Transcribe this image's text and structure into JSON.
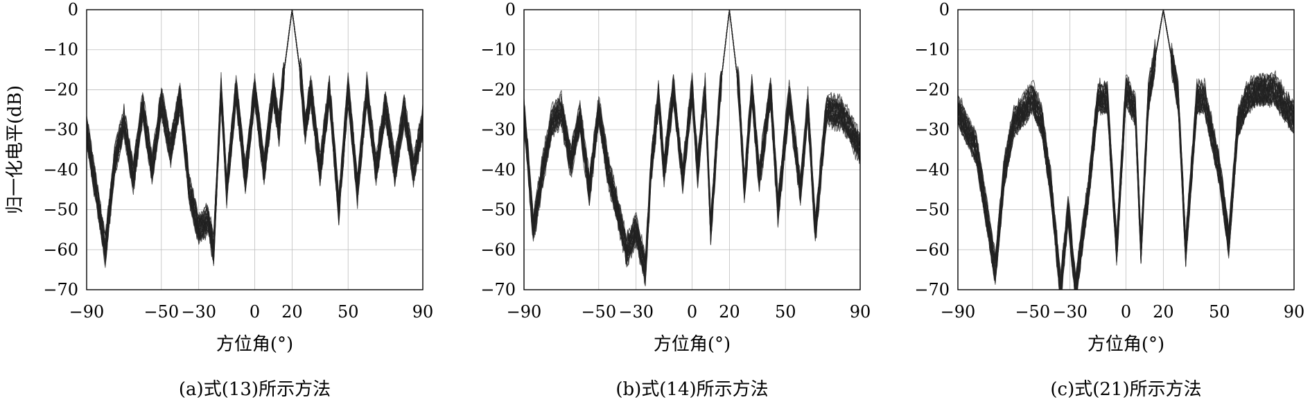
{
  "styles": {
    "line_color": "#222222",
    "grid_color": "#bdbdbd"
  },
  "chart_data": [
    {
      "type": "line",
      "caption": "(a)式(13)所示方法",
      "xlabel": "方位角(°)",
      "ylabel": "归一化电平(dB)",
      "xlim": [
        -90,
        90
      ],
      "ylim": [
        -70,
        0
      ],
      "xticks": [
        -90,
        -50,
        -30,
        0,
        20,
        50,
        90
      ],
      "yticks": [
        0,
        -10,
        -20,
        -30,
        -40,
        -50,
        -60,
        -70
      ],
      "grid": true,
      "mainlobe_center_deg": 20,
      "approx_envelope": [
        [
          -90,
          -30
        ],
        [
          -85,
          -45
        ],
        [
          -80,
          -60
        ],
        [
          -75,
          -38
        ],
        [
          -70,
          -28
        ],
        [
          -65,
          -42
        ],
        [
          -60,
          -24
        ],
        [
          -55,
          -40
        ],
        [
          -50,
          -23
        ],
        [
          -45,
          -35
        ],
        [
          -40,
          -22
        ],
        [
          -35,
          -45
        ],
        [
          -30,
          -55
        ],
        [
          -25,
          -52
        ],
        [
          -22,
          -60
        ],
        [
          -18,
          -20
        ],
        [
          -15,
          -45
        ],
        [
          -10,
          -20
        ],
        [
          -5,
          -42
        ],
        [
          0,
          -20
        ],
        [
          5,
          -40
        ],
        [
          10,
          -20
        ],
        [
          13,
          -30
        ],
        [
          15,
          -18
        ],
        [
          20,
          0
        ],
        [
          25,
          -18
        ],
        [
          27,
          -30
        ],
        [
          30,
          -20
        ],
        [
          35,
          -40
        ],
        [
          40,
          -20
        ],
        [
          45,
          -50
        ],
        [
          50,
          -20
        ],
        [
          55,
          -45
        ],
        [
          60,
          -20
        ],
        [
          65,
          -40
        ],
        [
          70,
          -24
        ],
        [
          75,
          -40
        ],
        [
          80,
          -25
        ],
        [
          85,
          -40
        ],
        [
          90,
          -28
        ]
      ],
      "series_count": 30
    },
    {
      "type": "line",
      "caption": "(b)式(14)所示方法",
      "xlabel": "方位角(°)",
      "ylabel": "",
      "xlim": [
        -90,
        90
      ],
      "ylim": [
        -70,
        0
      ],
      "xticks": [
        -90,
        -50,
        -30,
        0,
        20,
        50,
        90
      ],
      "yticks": [
        0,
        -10,
        -20,
        -30,
        -40,
        -50,
        -60,
        -70
      ],
      "grid": true,
      "mainlobe_center_deg": 20,
      "approx_envelope": [
        [
          -90,
          -25
        ],
        [
          -85,
          -55
        ],
        [
          -80,
          -40
        ],
        [
          -75,
          -28
        ],
        [
          -70,
          -25
        ],
        [
          -65,
          -38
        ],
        [
          -60,
          -27
        ],
        [
          -55,
          -45
        ],
        [
          -50,
          -25
        ],
        [
          -45,
          -40
        ],
        [
          -40,
          -50
        ],
        [
          -35,
          -60
        ],
        [
          -30,
          -55
        ],
        [
          -25,
          -65
        ],
        [
          -22,
          -40
        ],
        [
          -18,
          -22
        ],
        [
          -15,
          -40
        ],
        [
          -10,
          -20
        ],
        [
          -5,
          -42
        ],
        [
          0,
          -20
        ],
        [
          3,
          -40
        ],
        [
          7,
          -20
        ],
        [
          10,
          -55
        ],
        [
          15,
          -20
        ],
        [
          20,
          0
        ],
        [
          25,
          -20
        ],
        [
          28,
          -45
        ],
        [
          32,
          -20
        ],
        [
          36,
          -42
        ],
        [
          42,
          -20
        ],
        [
          46,
          -50
        ],
        [
          52,
          -22
        ],
        [
          58,
          -45
        ],
        [
          62,
          -24
        ],
        [
          66,
          -55
        ],
        [
          72,
          -25
        ],
        [
          80,
          -26
        ],
        [
          85,
          -30
        ],
        [
          90,
          -35
        ]
      ],
      "series_count": 30
    },
    {
      "type": "line",
      "caption": "(c)式(21)所示方法",
      "xlabel": "方位角(°)",
      "ylabel": "",
      "xlim": [
        -90,
        90
      ],
      "ylim": [
        -70,
        0
      ],
      "xticks": [
        -90,
        -50,
        -30,
        0,
        20,
        50,
        90
      ],
      "yticks": [
        0,
        -10,
        -20,
        -30,
        -40,
        -50,
        -60,
        -70
      ],
      "grid": true,
      "mainlobe_center_deg": 20,
      "approx_envelope": [
        [
          -90,
          -25
        ],
        [
          -80,
          -35
        ],
        [
          -70,
          -65
        ],
        [
          -65,
          -40
        ],
        [
          -60,
          -28
        ],
        [
          -50,
          -22
        ],
        [
          -45,
          -28
        ],
        [
          -40,
          -45
        ],
        [
          -35,
          -70
        ],
        [
          -31,
          -50
        ],
        [
          -27,
          -70
        ],
        [
          -20,
          -45
        ],
        [
          -15,
          -22
        ],
        [
          -10,
          -22
        ],
        [
          -5,
          -60
        ],
        [
          0,
          -20
        ],
        [
          5,
          -25
        ],
        [
          8,
          -60
        ],
        [
          12,
          -22
        ],
        [
          20,
          0
        ],
        [
          28,
          -22
        ],
        [
          32,
          -60
        ],
        [
          38,
          -22
        ],
        [
          42,
          -22
        ],
        [
          50,
          -40
        ],
        [
          55,
          -58
        ],
        [
          60,
          -28
        ],
        [
          65,
          -22
        ],
        [
          70,
          -20
        ],
        [
          80,
          -20
        ],
        [
          85,
          -24
        ],
        [
          90,
          -27
        ]
      ],
      "series_count": 30
    }
  ]
}
